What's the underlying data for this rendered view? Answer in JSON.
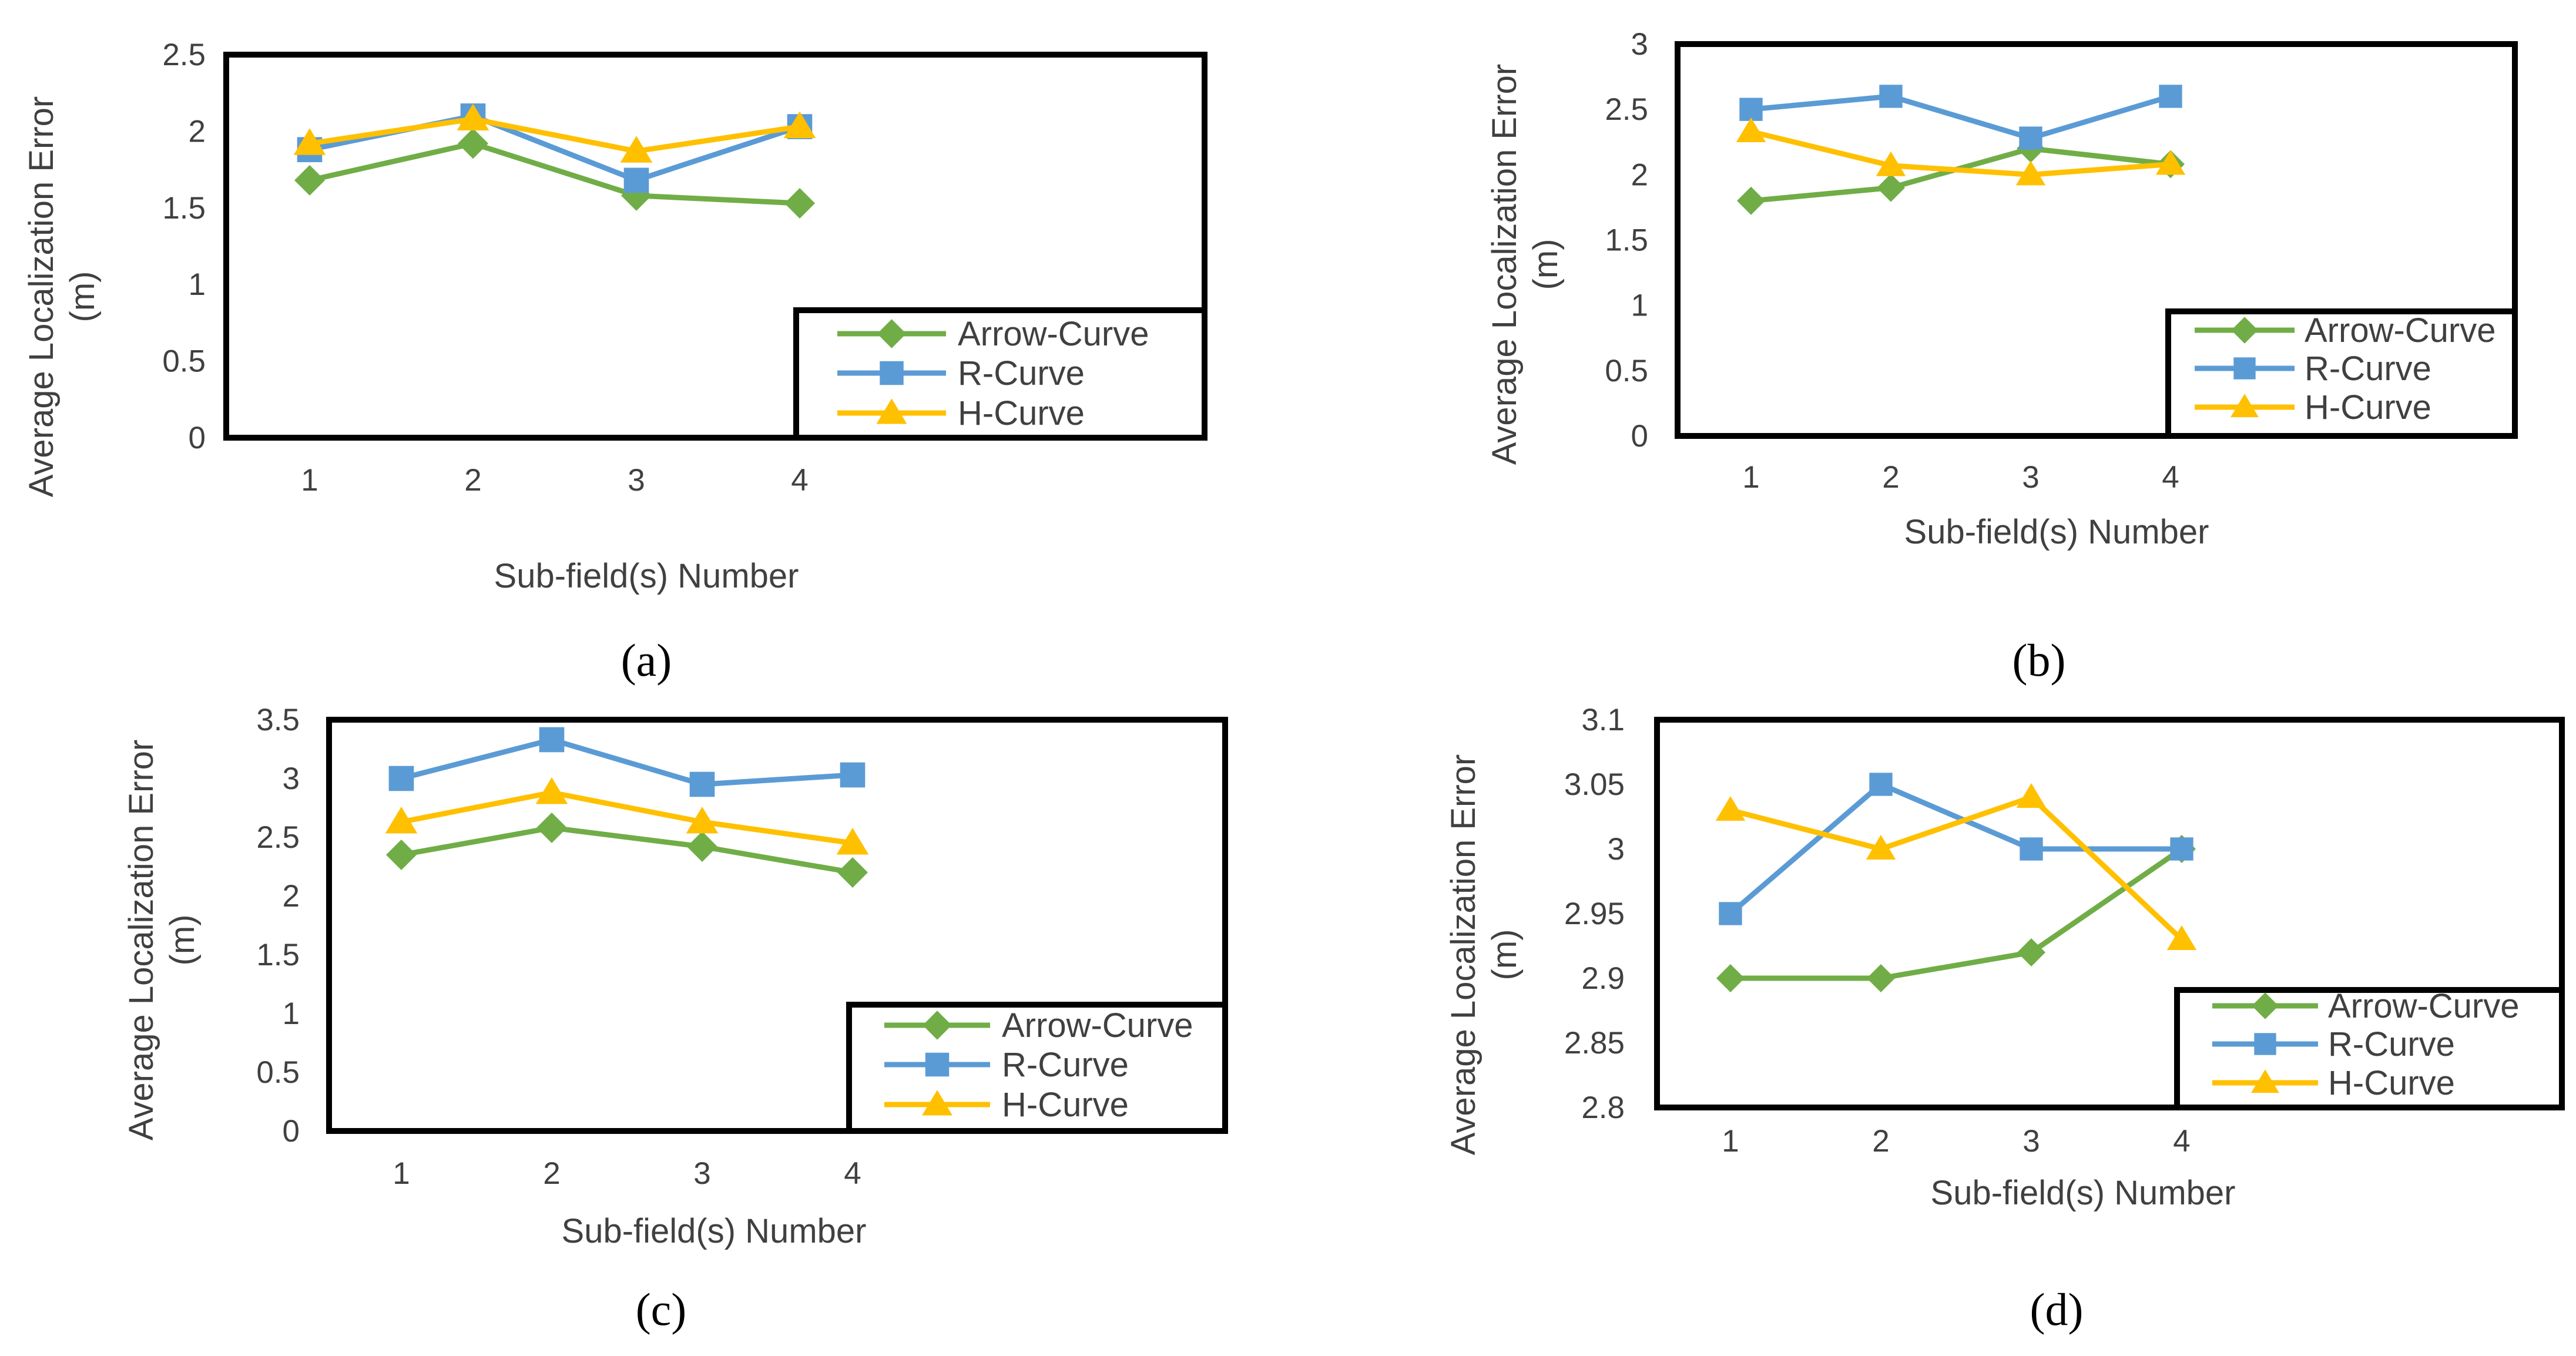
{
  "colors": {
    "Arrow-Curve": "#70ad47",
    "R-Curve": "#5b9bd5",
    "H-Curve": "#ffc000"
  },
  "markers": {
    "Arrow-Curve": "diamond",
    "R-Curve": "square",
    "H-Curve": "triangle"
  },
  "chart_data": [
    {
      "id": "a",
      "caption": "(a)",
      "type": "line",
      "xlabel": "Sub-field(s) Number",
      "ylabel_line1": "Average Localization Error",
      "ylabel_line2": "(m)",
      "categories": [
        "1",
        "2",
        "3",
        "4"
      ],
      "ylim": [
        0,
        2.5
      ],
      "yticks": [
        "0",
        "0.5",
        "1",
        "1.5",
        "2",
        "2.5"
      ],
      "legend_position": "bottom-right",
      "grid": false,
      "series": [
        {
          "name": "Arrow-Curve",
          "values": [
            1.68,
            1.92,
            1.58,
            1.53
          ]
        },
        {
          "name": "R-Curve",
          "values": [
            1.88,
            2.1,
            1.68,
            2.03
          ]
        },
        {
          "name": "H-Curve",
          "values": [
            1.92,
            2.08,
            1.87,
            2.03
          ]
        }
      ]
    },
    {
      "id": "b",
      "caption": "(b)",
      "type": "line",
      "xlabel": "Sub-field(s) Number",
      "ylabel_line1": "Average Localization Error",
      "ylabel_line2": "(m)",
      "categories": [
        "1",
        "2",
        "3",
        "4"
      ],
      "ylim": [
        0,
        3
      ],
      "yticks": [
        "0",
        "0.5",
        "1",
        "1.5",
        "2",
        "2.5",
        "3"
      ],
      "legend_position": "bottom-right",
      "grid": false,
      "series": [
        {
          "name": "Arrow-Curve",
          "values": [
            1.8,
            1.9,
            2.2,
            2.08
          ]
        },
        {
          "name": "R-Curve",
          "values": [
            2.5,
            2.6,
            2.28,
            2.6
          ]
        },
        {
          "name": "H-Curve",
          "values": [
            2.33,
            2.07,
            2.0,
            2.08
          ]
        }
      ]
    },
    {
      "id": "c",
      "caption": "(c)",
      "type": "line",
      "xlabel": "Sub-field(s) Number",
      "ylabel_line1": "Average Localization Error",
      "ylabel_line2": "(m)",
      "categories": [
        "1",
        "2",
        "3",
        "4"
      ],
      "ylim": [
        0,
        3.5
      ],
      "yticks": [
        "0",
        "0.5",
        "1",
        "1.5",
        "2",
        "2.5",
        "3",
        "3.5"
      ],
      "legend_position": "bottom-right",
      "grid": false,
      "series": [
        {
          "name": "Arrow-Curve",
          "values": [
            2.35,
            2.58,
            2.42,
            2.2
          ]
        },
        {
          "name": "R-Curve",
          "values": [
            3.0,
            3.33,
            2.95,
            3.03
          ]
        },
        {
          "name": "H-Curve",
          "values": [
            2.63,
            2.88,
            2.63,
            2.45
          ]
        }
      ]
    },
    {
      "id": "d",
      "caption": "(d)",
      "type": "line",
      "xlabel": "Sub-field(s) Number",
      "ylabel_line1": "Average Localization Error",
      "ylabel_line2": "(m)",
      "categories": [
        "1",
        "2",
        "3",
        "4"
      ],
      "ylim": [
        2.8,
        3.1
      ],
      "yticks": [
        "2.8",
        "2.85",
        "2.9",
        "2.95",
        "3",
        "3.05",
        "3.1"
      ],
      "legend_position": "bottom-right",
      "grid": false,
      "series": [
        {
          "name": "Arrow-Curve",
          "values": [
            2.9,
            2.9,
            2.92,
            3.0
          ]
        },
        {
          "name": "R-Curve",
          "values": [
            2.95,
            3.05,
            3.0,
            3.0
          ]
        },
        {
          "name": "H-Curve",
          "values": [
            3.03,
            3.0,
            3.04,
            2.93
          ]
        }
      ]
    }
  ]
}
